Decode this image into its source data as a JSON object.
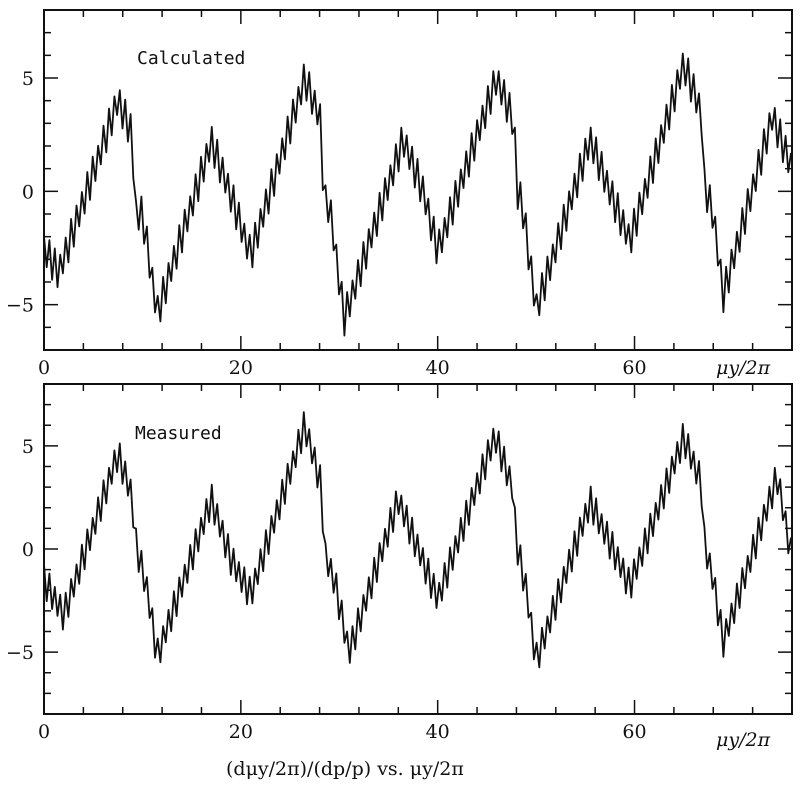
{
  "figure": {
    "caption": "(dμy/2π)/(dp/p) vs. μy/2π"
  },
  "chart_data": [
    {
      "type": "line",
      "panel_label": "Calculated",
      "x_unit_label": "μy/2π",
      "xlim": [
        0,
        76
      ],
      "ylim": [
        -7,
        8
      ],
      "x_ticks": [
        0,
        20,
        40,
        60
      ],
      "y_ticks": [
        -5,
        0,
        5
      ],
      "grid": false,
      "envelope": [
        [
          0,
          -2.5
        ],
        [
          1.5,
          -3.6
        ],
        [
          7.5,
          4.0
        ],
        [
          9,
          2.5
        ],
        [
          9.2,
          -1.0
        ],
        [
          10,
          -1.0
        ],
        [
          11.5,
          -5.4
        ],
        [
          17,
          2.2
        ],
        [
          19,
          -0.2
        ],
        [
          21,
          -2.8
        ],
        [
          26.5,
          5.0
        ],
        [
          28.2,
          3.0
        ],
        [
          28.4,
          -0.5
        ],
        [
          29,
          -0.6
        ],
        [
          30.5,
          -5.6
        ],
        [
          36.5,
          2.3
        ],
        [
          38.5,
          0.0
        ],
        [
          40,
          -2.6
        ],
        [
          46,
          5.0
        ],
        [
          47.8,
          3.0
        ],
        [
          48,
          -0.2
        ],
        [
          48.5,
          -0.3
        ],
        [
          50,
          -5.2
        ],
        [
          55.5,
          2.3
        ],
        [
          57.5,
          0.0
        ],
        [
          59.5,
          -2.2
        ],
        [
          65,
          5.6
        ],
        [
          66.8,
          3.5
        ],
        [
          67,
          0.4
        ],
        [
          68,
          -1.0
        ],
        [
          69,
          -4.6
        ],
        [
          74,
          3.3
        ],
        [
          76,
          1.0
        ]
      ],
      "ripple_amplitude": 0.8,
      "ripple_period": 0.55
    },
    {
      "type": "line",
      "panel_label": "Measured",
      "x_unit_label": "μy/2π",
      "xlim": [
        0,
        76
      ],
      "ylim": [
        -8,
        8
      ],
      "x_ticks": [
        0,
        20,
        40,
        60
      ],
      "y_ticks": [
        -5,
        0,
        5
      ],
      "grid": false,
      "envelope": [
        [
          0,
          -1.5
        ],
        [
          2,
          -3.2
        ],
        [
          7.5,
          4.6
        ],
        [
          9,
          2.5
        ],
        [
          9.2,
          0.5
        ],
        [
          10.5,
          -2.0
        ],
        [
          11.5,
          -5.2
        ],
        [
          17,
          2.4
        ],
        [
          19,
          -0.5
        ],
        [
          21,
          -2.2
        ],
        [
          26.5,
          6.0
        ],
        [
          28.2,
          3.0
        ],
        [
          28.5,
          -0.3
        ],
        [
          29.5,
          -1.5
        ],
        [
          31,
          -5.0
        ],
        [
          36,
          2.4
        ],
        [
          38,
          0.0
        ],
        [
          40,
          -2.4
        ],
        [
          45.8,
          5.5
        ],
        [
          47.6,
          3.0
        ],
        [
          48,
          0.3
        ],
        [
          49,
          -2.0
        ],
        [
          50,
          -5.4
        ],
        [
          55.5,
          2.3
        ],
        [
          57.5,
          0.3
        ],
        [
          59.5,
          -1.8
        ],
        [
          65,
          5.4
        ],
        [
          66.8,
          3.2
        ],
        [
          67,
          0.5
        ],
        [
          68,
          -1.5
        ],
        [
          69,
          -4.5
        ],
        [
          74.5,
          3.5
        ],
        [
          76,
          -0.5
        ]
      ],
      "ripple_amplitude": 0.8,
      "ripple_period": 0.55
    }
  ]
}
